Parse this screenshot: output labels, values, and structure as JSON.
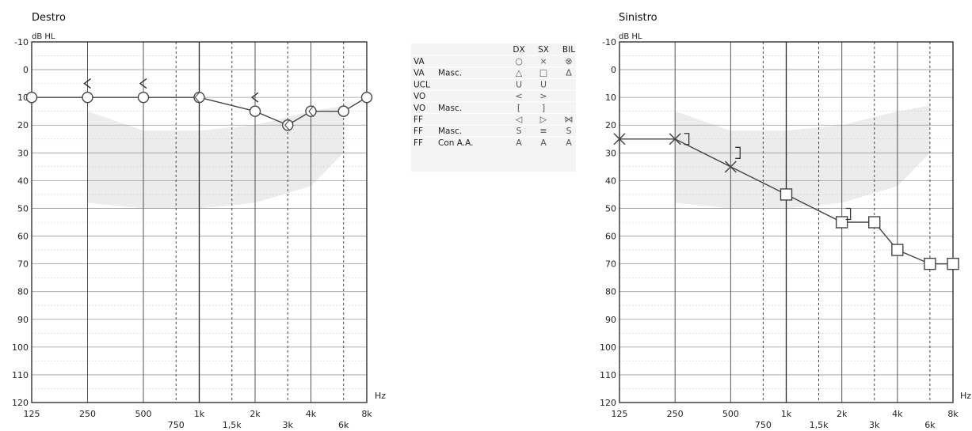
{
  "chart_data": [
    {
      "type": "line",
      "title": "Destro",
      "ylabel": "dB HL",
      "xlabel": "Hz",
      "ylim": [
        -10,
        120
      ],
      "y_inverted": true,
      "y_ticks": [
        "-10",
        "0",
        "10",
        "20",
        "30",
        "40",
        "50",
        "60",
        "70",
        "80",
        "90",
        "100",
        "110",
        "120"
      ],
      "x_scale": "log",
      "x_ticks_main": [
        {
          "value": 125,
          "label": "125"
        },
        {
          "value": 250,
          "label": "250"
        },
        {
          "value": 500,
          "label": "500"
        },
        {
          "value": 1000,
          "label": "1k"
        },
        {
          "value": 2000,
          "label": "2k"
        },
        {
          "value": 4000,
          "label": "4k"
        },
        {
          "value": 8000,
          "label": "8k"
        }
      ],
      "x_ticks_mid": [
        {
          "value": 750,
          "label": "750"
        },
        {
          "value": 1500,
          "label": "1,5k"
        },
        {
          "value": 3000,
          "label": "3k"
        },
        {
          "value": 6000,
          "label": "6k"
        }
      ],
      "banana_color": "#ececec",
      "grid": true,
      "series": [
        {
          "x": [
            125,
            250,
            500,
            1000,
            2000,
            3000,
            4000,
            6000,
            8000
          ],
          "y": [
            10,
            10,
            10,
            10,
            15,
            20,
            15,
            15,
            10
          ],
          "marker": "circle",
          "color": "#444444"
        }
      ],
      "extra_markers": [
        {
          "x": 950,
          "y": 10,
          "marker": "bracket-left-tri"
        },
        {
          "x": 2900,
          "y": 20,
          "marker": "bracket-left-tri"
        },
        {
          "x": 3900,
          "y": 15,
          "marker": "bracket-left-tri"
        },
        {
          "x": 250,
          "y": 5,
          "marker": "chevron-left"
        },
        {
          "x": 500,
          "y": 5,
          "marker": "chevron-left"
        },
        {
          "x": 2000,
          "y": 10,
          "marker": "chevron-left"
        }
      ]
    },
    {
      "type": "line",
      "title": "Sinistro",
      "ylabel": "dB HL",
      "xlabel": "Hz",
      "ylim": [
        -10,
        120
      ],
      "y_inverted": true,
      "y_ticks": [
        "-10",
        "0",
        "10",
        "20",
        "30",
        "40",
        "50",
        "60",
        "70",
        "80",
        "90",
        "100",
        "110",
        "120"
      ],
      "x_scale": "log",
      "x_ticks_main": [
        {
          "value": 125,
          "label": "125"
        },
        {
          "value": 250,
          "label": "250"
        },
        {
          "value": 500,
          "label": "500"
        },
        {
          "value": 1000,
          "label": "1k"
        },
        {
          "value": 2000,
          "label": "2k"
        },
        {
          "value": 4000,
          "label": "4k"
        },
        {
          "value": 8000,
          "label": "8k"
        }
      ],
      "x_ticks_mid": [
        {
          "value": 750,
          "label": "750"
        },
        {
          "value": 1500,
          "label": "1,5k"
        },
        {
          "value": 3000,
          "label": "3k"
        },
        {
          "value": 6000,
          "label": "6k"
        }
      ],
      "banana_color": "#ececec",
      "grid": true,
      "series": [
        {
          "x": [
            125,
            250,
            500,
            1000,
            2000,
            3000,
            4000,
            6000,
            8000
          ],
          "y": [
            25,
            25,
            35,
            45,
            55,
            55,
            65,
            70,
            70
          ],
          "marker": "x-then-square",
          "color": "#444444"
        }
      ],
      "extra_markers": [
        {
          "x": 280,
          "y": 25,
          "marker": "bracket-right"
        },
        {
          "x": 530,
          "y": 30,
          "marker": "bracket-right"
        },
        {
          "x": 2100,
          "y": 52,
          "marker": "bracket-right"
        }
      ]
    }
  ],
  "legend_table": {
    "headers": [
      "",
      "",
      "DX",
      "SX",
      "BIL"
    ],
    "rows": [
      {
        "code": "VA",
        "mode": "",
        "dx": "○",
        "sx": "×",
        "bil": "⊗"
      },
      {
        "code": "VA",
        "mode": "Masc.",
        "dx": "△",
        "sx": "□",
        "bil": "Δ"
      },
      {
        "code": "UCL",
        "mode": "",
        "dx": "U",
        "sx": "U",
        "bil": ""
      },
      {
        "code": "VO",
        "mode": "",
        "dx": "<",
        "sx": ">",
        "bil": ""
      },
      {
        "code": "VO",
        "mode": "Masc.",
        "dx": "[",
        "sx": "]",
        "bil": ""
      },
      {
        "code": "FF",
        "mode": "",
        "dx": "◁",
        "sx": "▷",
        "bil": "⋈"
      },
      {
        "code": "FF",
        "mode": "Masc.",
        "dx": "S",
        "sx": "≡",
        "bil": "S"
      },
      {
        "code": "FF",
        "mode": "Con A.A.",
        "dx": "A",
        "sx": "A",
        "bil": "A"
      }
    ]
  }
}
